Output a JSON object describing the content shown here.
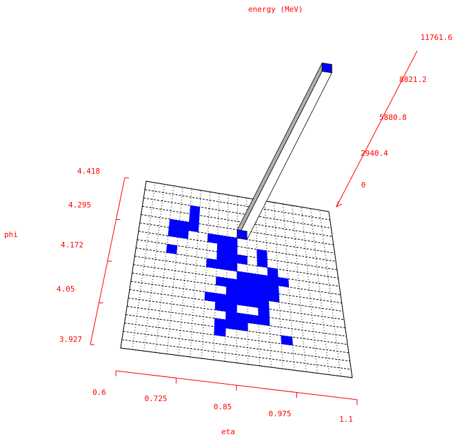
{
  "chart_data": {
    "type": "lego",
    "title": "",
    "axes": {
      "x": {
        "label": "eta",
        "range": [
          0.6,
          1.1
        ],
        "ticks": [
          "0.6",
          "0.725",
          "0.85",
          "0.975",
          "1.1"
        ]
      },
      "y": {
        "label": "phi",
        "range": [
          3.927,
          4.418
        ],
        "ticks": [
          "3.927",
          "4.05",
          "4.172",
          "4.295",
          "4.418"
        ]
      },
      "z": {
        "label": "energy (MeV)",
        "range": [
          0,
          11761.6
        ],
        "ticks": [
          "0",
          "2940.4",
          "5880.8",
          "8821.2",
          "11761.6"
        ]
      }
    },
    "grid": {
      "eta_cells": 20,
      "phi_cells": 20
    },
    "tall_tower": {
      "eta_index": 10,
      "phi_index": 15,
      "energy": 11761.6
    },
    "small_cells": [
      [
        5,
        17
      ],
      [
        5,
        16
      ],
      [
        4,
        15
      ],
      [
        5,
        15
      ],
      [
        4,
        14
      ],
      [
        3,
        15
      ],
      [
        3,
        14
      ],
      [
        7,
        14
      ],
      [
        8,
        14
      ],
      [
        9,
        14
      ],
      [
        10,
        15
      ],
      [
        3,
        12
      ],
      [
        8,
        13
      ],
      [
        9,
        13
      ],
      [
        8,
        12
      ],
      [
        9,
        12
      ],
      [
        10,
        12
      ],
      [
        12,
        12
      ],
      [
        12,
        13
      ],
      [
        7,
        11
      ],
      [
        8,
        11
      ],
      [
        9,
        11
      ],
      [
        10,
        10
      ],
      [
        11,
        10
      ],
      [
        12,
        10
      ],
      [
        13,
        10
      ],
      [
        13,
        11
      ],
      [
        14,
        10
      ],
      [
        12,
        12
      ],
      [
        8,
        9
      ],
      [
        9,
        9
      ],
      [
        10,
        9
      ],
      [
        11,
        9
      ],
      [
        12,
        9
      ],
      [
        13,
        9
      ],
      [
        9,
        8
      ],
      [
        10,
        8
      ],
      [
        11,
        8
      ],
      [
        12,
        8
      ],
      [
        13,
        8
      ],
      [
        7,
        7
      ],
      [
        8,
        7
      ],
      [
        9,
        7
      ],
      [
        10,
        7
      ],
      [
        11,
        7
      ],
      [
        12,
        7
      ],
      [
        8,
        6
      ],
      [
        9,
        6
      ],
      [
        12,
        6
      ],
      [
        9,
        5
      ],
      [
        10,
        5
      ],
      [
        11,
        5
      ],
      [
        12,
        5
      ],
      [
        8,
        4
      ],
      [
        9,
        4
      ],
      [
        10,
        4
      ],
      [
        8,
        3
      ],
      [
        14,
        3
      ]
    ],
    "colors": {
      "axis": "#ff0000",
      "cell": "#0000ff",
      "grid": "#000000",
      "tower_face": "#ffffff",
      "tower_side": "#b0b0b0"
    }
  }
}
